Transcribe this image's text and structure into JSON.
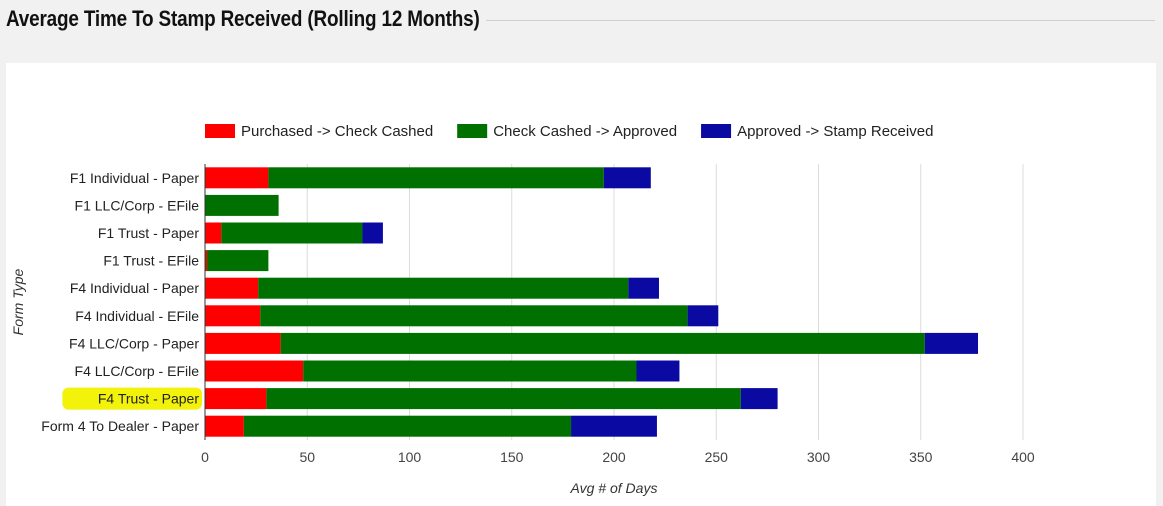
{
  "page": {
    "title": "Average Time To Stamp Received (Rolling 12 Months)"
  },
  "chart_data": {
    "type": "bar",
    "orientation": "horizontal",
    "stacked": true,
    "categories": [
      "F1 Individual - Paper",
      "F1 LLC/Corp - EFile",
      "F1 Trust - Paper",
      "F1 Trust - EFile",
      "F4 Individual - Paper",
      "F4 Individual - EFile",
      "F4 LLC/Corp - Paper",
      "F4 LLC/Corp - EFile",
      "F4 Trust - Paper",
      "Form 4 To Dealer - Paper"
    ],
    "highlighted_category": "F4 Trust - Paper",
    "highlight_color": "#f2f20a",
    "series": [
      {
        "name": "Purchased -> Check Cashed",
        "color": "#ff0000",
        "values": [
          31,
          0,
          8,
          1,
          26,
          27,
          37,
          48,
          30,
          19
        ]
      },
      {
        "name": "Check Cashed -> Approved",
        "color": "#007000",
        "values": [
          164,
          36,
          69,
          30,
          181,
          209,
          315,
          163,
          232,
          160
        ]
      },
      {
        "name": "Approved -> Stamp Received",
        "color": "#0a0aa3",
        "values": [
          23,
          0,
          10,
          0,
          15,
          15,
          26,
          21,
          18,
          42
        ]
      }
    ],
    "xticks": [
      0,
      50,
      100,
      150,
      200,
      250,
      300,
      350,
      400
    ],
    "xlim": [
      0,
      400
    ],
    "xlabel": "Avg # of Days",
    "ylabel": "Form Type",
    "grid": "vertical",
    "legend_position": "top"
  }
}
